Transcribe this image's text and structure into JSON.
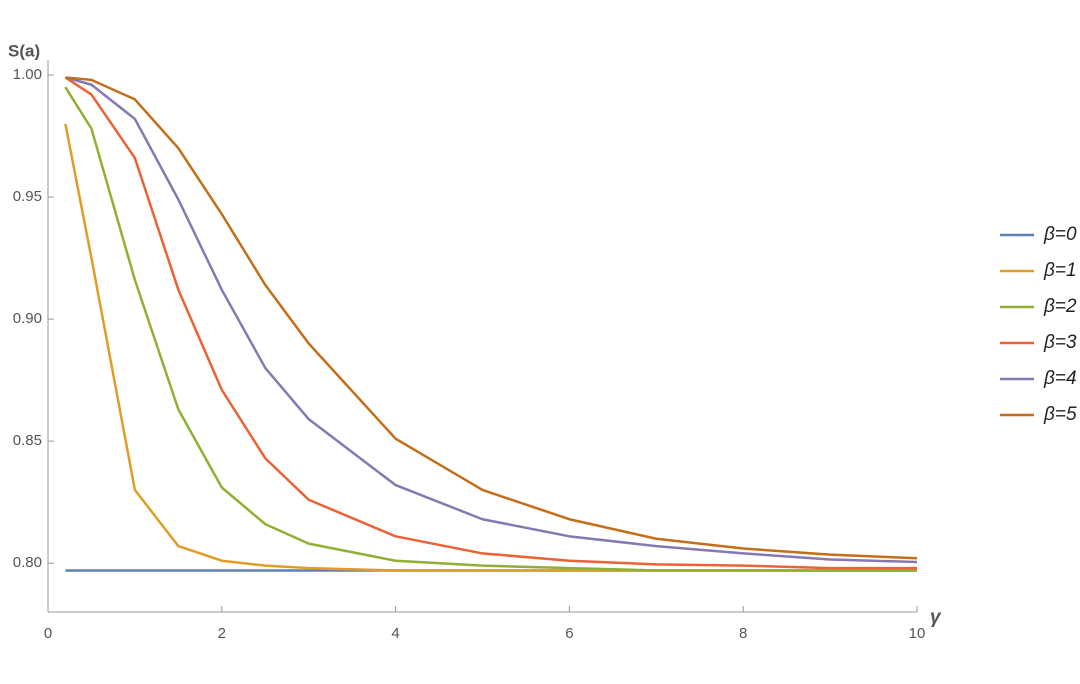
{
  "chart_data": {
    "type": "line",
    "y_label": "S(a)",
    "x_label": "γ",
    "x": [
      0.2,
      0.5,
      1,
      1.5,
      2,
      2.5,
      3,
      4,
      5,
      6,
      7,
      8,
      9,
      10
    ],
    "series": [
      {
        "name": "β=0",
        "color": "#5e81b5",
        "values": [
          0.797,
          0.797,
          0.797,
          0.797,
          0.797,
          0.797,
          0.797,
          0.797,
          0.797,
          0.797,
          0.797,
          0.797,
          0.797,
          0.797
        ]
      },
      {
        "name": "β=1",
        "color": "#e19c24",
        "values": [
          0.98,
          0.925,
          0.83,
          0.807,
          0.801,
          0.799,
          0.798,
          0.797,
          0.797,
          0.797,
          0.797,
          0.797,
          0.797,
          0.797
        ]
      },
      {
        "name": "β=2",
        "color": "#8fb032",
        "values": [
          0.995,
          0.978,
          0.916,
          0.863,
          0.831,
          0.816,
          0.808,
          0.801,
          0.799,
          0.798,
          0.797,
          0.797,
          0.797,
          0.797
        ]
      },
      {
        "name": "β=3",
        "color": "#eb6235",
        "values": [
          0.999,
          0.992,
          0.966,
          0.912,
          0.871,
          0.843,
          0.826,
          0.811,
          0.804,
          0.801,
          0.7995,
          0.799,
          0.798,
          0.798
        ]
      },
      {
        "name": "β=4",
        "color": "#8778b3",
        "values": [
          0.999,
          0.996,
          0.982,
          0.949,
          0.912,
          0.88,
          0.859,
          0.832,
          0.818,
          0.811,
          0.807,
          0.804,
          0.8015,
          0.8005
        ]
      },
      {
        "name": "β=5",
        "color": "#c56e1a",
        "values": [
          0.999,
          0.998,
          0.99,
          0.97,
          0.943,
          0.914,
          0.89,
          0.851,
          0.83,
          0.818,
          0.81,
          0.806,
          0.8035,
          0.802
        ]
      }
    ],
    "xlim": [
      0,
      10
    ],
    "xticks": [
      0,
      2,
      4,
      6,
      8,
      10
    ],
    "ylim": [
      0.78,
      1.0
    ],
    "yticks": [
      {
        "value": 0.8,
        "label": "0.80"
      },
      0.85,
      {
        "value": 0.9,
        "label": "0.90"
      },
      0.95,
      {
        "value": 1.0,
        "label": "1.00"
      }
    ],
    "grid": false,
    "legend": "right"
  }
}
